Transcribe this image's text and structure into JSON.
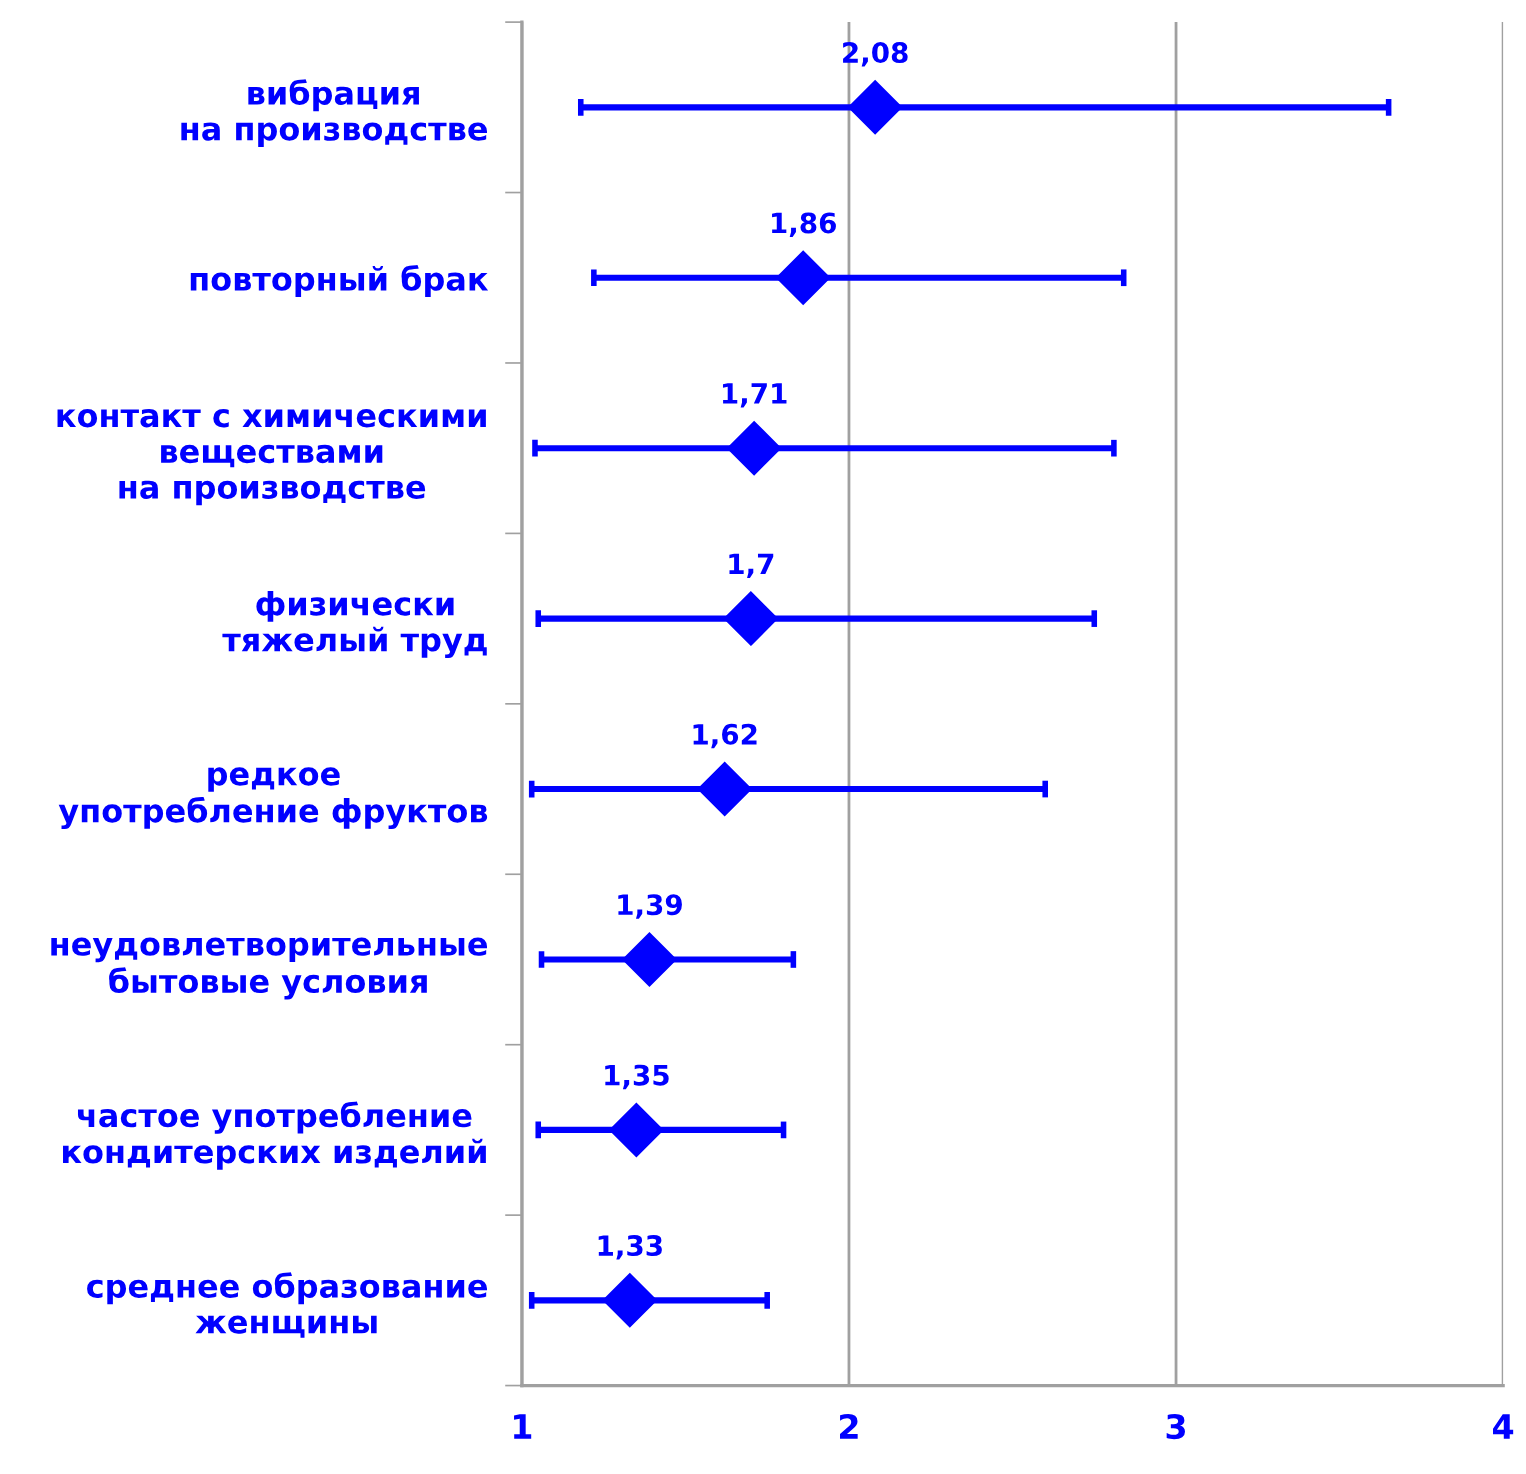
{
  "chart_data": {
    "type": "scatter",
    "orientation": "horizontal",
    "categories": [
      "вибрация\nна производстве",
      "повторный брак",
      "контакт с химическими\nвеществами\nна производстве",
      "физически\nтяжелый труд",
      "редкое\nупотребление фруктов",
      "неудовлетворительные\nбытовые условия",
      "частое употребление\nкондитерских изделий",
      "среднее образование\nженщины"
    ],
    "values": [
      2.08,
      1.86,
      1.71,
      1.7,
      1.62,
      1.39,
      1.35,
      1.33
    ],
    "errors": [
      [
        1.18,
        3.65
      ],
      [
        1.22,
        2.84
      ],
      [
        1.04,
        2.81
      ],
      [
        1.05,
        2.75
      ],
      [
        1.03,
        2.6
      ],
      [
        1.06,
        1.83
      ],
      [
        1.05,
        1.8
      ],
      [
        1.03,
        1.75
      ]
    ],
    "value_labels": [
      "2,08",
      "1,86",
      "1,71",
      "1,7",
      "1,62",
      "1,39",
      "1,35",
      "1,33"
    ],
    "color": "#0000ff",
    "marker": "diamond",
    "grid": "x",
    "xlim": [
      1,
      4
    ],
    "xticks": [
      1,
      2,
      3,
      4
    ]
  }
}
